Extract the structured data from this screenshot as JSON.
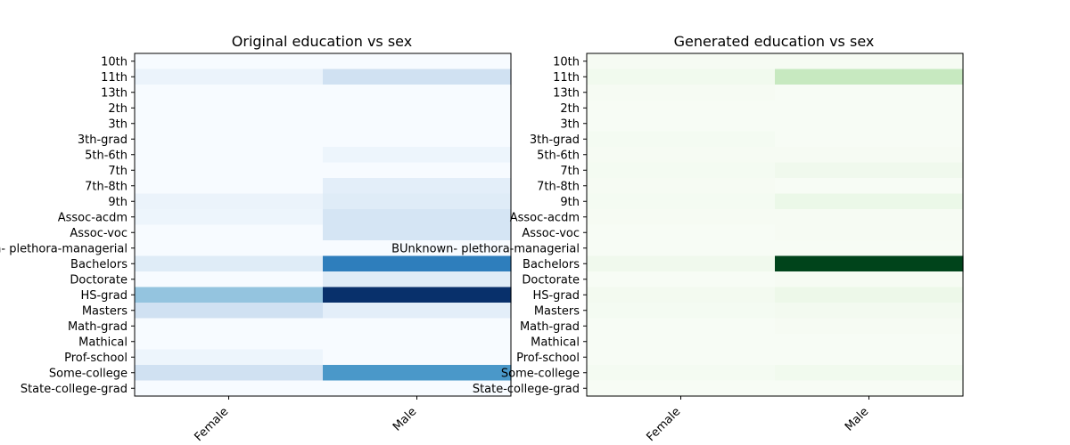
{
  "chart_data": [
    {
      "type": "heatmap",
      "title": "Original education vs sex",
      "colormap": "Blues",
      "x_categories": [
        "Female",
        "Male"
      ],
      "y_categories": [
        "10th",
        "11th",
        "13th",
        "2th",
        "3th",
        "3th-grad",
        "5th-6th",
        "7th",
        "7th-8th",
        "9th",
        "Assoc-acdm",
        "Assoc-voc",
        "BUnknown- plethora-managerial",
        "Bachelors",
        "Doctorate",
        "HS-grad",
        "Masters",
        "Math-grad",
        "Mathical",
        "Prof-school",
        "Some-college",
        "State-college-grad"
      ],
      "values": [
        [
          0.0,
          0.0
        ],
        [
          0.06,
          0.2
        ],
        [
          0.0,
          0.0
        ],
        [
          0.0,
          0.0
        ],
        [
          0.0,
          0.0
        ],
        [
          0.0,
          0.0
        ],
        [
          0.0,
          0.05
        ],
        [
          0.0,
          0.0
        ],
        [
          0.0,
          0.1
        ],
        [
          0.06,
          0.12
        ],
        [
          0.05,
          0.17
        ],
        [
          0.0,
          0.17
        ],
        [
          0.0,
          0.0
        ],
        [
          0.12,
          0.7
        ],
        [
          0.0,
          0.12
        ],
        [
          0.4,
          1.0
        ],
        [
          0.2,
          0.1
        ],
        [
          0.0,
          0.0
        ],
        [
          0.0,
          0.0
        ],
        [
          0.05,
          0.0
        ],
        [
          0.2,
          0.6
        ],
        [
          0.0,
          0.0
        ]
      ]
    },
    {
      "type": "heatmap",
      "title": "Generated education vs sex",
      "colormap": "Greens",
      "x_categories": [
        "Female",
        "Male"
      ],
      "y_categories": [
        "10th",
        "11th",
        "13th",
        "2th",
        "3th",
        "3th-grad",
        "5th-6th",
        "7th",
        "7th-8th",
        "9th",
        "Assoc-acdm",
        "Assoc-voc",
        "BUnknown- plethora-managerial",
        "Bachelors",
        "Doctorate",
        "HS-grad",
        "Masters",
        "Math-grad",
        "Mathical",
        "Prof-school",
        "Some-college",
        "State-college-grad"
      ],
      "values": [
        [
          0.01,
          0.01
        ],
        [
          0.04,
          0.25
        ],
        [
          0.01,
          0.0
        ],
        [
          0.0,
          0.0
        ],
        [
          0.0,
          0.0
        ],
        [
          0.02,
          0.0
        ],
        [
          0.01,
          0.01
        ],
        [
          0.02,
          0.05
        ],
        [
          0.01,
          0.0
        ],
        [
          0.02,
          0.08
        ],
        [
          0.01,
          0.01
        ],
        [
          0.0,
          0.01
        ],
        [
          0.0,
          0.0
        ],
        [
          0.05,
          1.0
        ],
        [
          0.0,
          0.01
        ],
        [
          0.03,
          0.07
        ],
        [
          0.02,
          0.03
        ],
        [
          0.0,
          0.01
        ],
        [
          0.0,
          0.0
        ],
        [
          0.0,
          0.0
        ],
        [
          0.02,
          0.04
        ],
        [
          0.0,
          0.0
        ]
      ]
    }
  ]
}
